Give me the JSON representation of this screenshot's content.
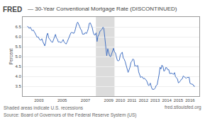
{
  "chart_data": {
    "type": "line",
    "title": "— 30-Year Conventional Mortgage Rate (DISCONTINUED)",
    "ylabel": "Percent",
    "annotations": [
      "FRED",
      "Shaded areas indicate U.S. recessions",
      "Source: Board of Governors of the Federal Reserve System (US)",
      "fred.stlouisfed.org"
    ],
    "xlim": [
      2001.6,
      2016.8
    ],
    "xticks": [
      2003,
      2005,
      2007,
      2009,
      2010,
      2011,
      2012,
      2013,
      2014,
      2015,
      2016
    ],
    "ylim": [
      3.0,
      7.0
    ],
    "yticks": [
      3.5,
      {
        "value": 4.0,
        "label": "4.0"
      },
      4.5,
      {
        "value": 5.0,
        "label": "5.0"
      },
      5.5,
      {
        "value": 6.0,
        "label": "6.0"
      },
      6.5
    ],
    "grid": "y",
    "shaded_ranges": [
      [
        2007.9,
        2009.5
      ]
    ],
    "color": "#4472C4",
    "x": [
      2002.0,
      2002.08,
      2002.17,
      2002.25,
      2002.33,
      2002.42,
      2002.5,
      2002.58,
      2002.67,
      2002.75,
      2002.83,
      2002.92,
      2003.0,
      2003.08,
      2003.17,
      2003.25,
      2003.33,
      2003.42,
      2003.5,
      2003.58,
      2003.67,
      2003.75,
      2003.83,
      2003.92,
      2004.0,
      2004.08,
      2004.17,
      2004.25,
      2004.33,
      2004.42,
      2004.5,
      2004.58,
      2004.67,
      2004.75,
      2004.83,
      2004.92,
      2005.0,
      2005.08,
      2005.17,
      2005.25,
      2005.33,
      2005.42,
      2005.5,
      2005.58,
      2005.67,
      2005.75,
      2005.83,
      2005.92,
      2006.0,
      2006.08,
      2006.17,
      2006.25,
      2006.33,
      2006.42,
      2006.5,
      2006.58,
      2006.67,
      2006.75,
      2006.83,
      2006.92,
      2007.0,
      2007.08,
      2007.17,
      2007.25,
      2007.33,
      2007.42,
      2007.5,
      2007.58,
      2007.67,
      2007.75,
      2007.83,
      2007.92,
      2008.0,
      2008.08,
      2008.17,
      2008.25,
      2008.33,
      2008.42,
      2008.5,
      2008.58,
      2008.67,
      2008.75,
      2008.83,
      2008.92,
      2009.0,
      2009.08,
      2009.17,
      2009.25,
      2009.33,
      2009.42,
      2009.5,
      2009.58,
      2009.67,
      2009.75,
      2009.83,
      2009.92,
      2010.0,
      2010.08,
      2010.17,
      2010.25,
      2010.33,
      2010.42,
      2010.5,
      2010.58,
      2010.67,
      2010.75,
      2010.83,
      2010.92,
      2011.0,
      2011.08,
      2011.17,
      2011.25,
      2011.33,
      2011.42,
      2011.5,
      2011.58,
      2011.67,
      2011.75,
      2011.83,
      2011.92,
      2012.0,
      2012.08,
      2012.17,
      2012.25,
      2012.33,
      2012.42,
      2012.5,
      2012.58,
      2012.67,
      2012.75,
      2012.83,
      2012.92,
      2013.0,
      2013.08,
      2013.17,
      2013.25,
      2013.33,
      2013.42,
      2013.5,
      2013.58,
      2013.67,
      2013.75,
      2013.83,
      2013.92,
      2014.0,
      2014.08,
      2014.17,
      2014.25,
      2014.33,
      2014.42,
      2014.5,
      2014.58,
      2014.67,
      2014.75,
      2014.83,
      2014.92,
      2015.0,
      2015.08,
      2015.17,
      2015.25,
      2015.33,
      2015.42,
      2015.5,
      2015.58,
      2015.67,
      2015.75,
      2015.83,
      2015.92,
      2016.0,
      2016.08,
      2016.17,
      2016.25,
      2016.33,
      2016.42
    ],
    "values": [
      6.54,
      6.5,
      6.42,
      6.48,
      6.38,
      6.3,
      6.35,
      6.28,
      6.18,
      6.08,
      5.98,
      6.0,
      5.92,
      5.84,
      5.83,
      5.9,
      5.76,
      5.65,
      5.54,
      5.72,
      6.08,
      6.18,
      5.95,
      5.88,
      5.8,
      5.74,
      5.72,
      5.85,
      5.95,
      6.12,
      5.94,
      5.88,
      5.73,
      5.75,
      5.72,
      5.71,
      5.77,
      5.86,
      5.73,
      5.66,
      5.63,
      5.73,
      5.83,
      5.97,
      6.1,
      6.2,
      6.22,
      6.18,
      6.17,
      6.26,
      6.52,
      6.65,
      6.74,
      6.58,
      6.52,
      6.39,
      6.32,
      6.13,
      6.14,
      6.14,
      6.22,
      6.16,
      6.27,
      6.42,
      6.68,
      6.7,
      6.58,
      6.47,
      6.22,
      6.1,
      6.09,
      6.2,
      5.76,
      6.03,
      6.12,
      6.28,
      6.32,
      6.37,
      6.48,
      6.44,
      5.94,
      5.47,
      5.04,
      5.4,
      5.2,
      5.03,
      4.99,
      5.16,
      5.3,
      5.42,
      5.22,
      5.19,
      4.97,
      4.8,
      4.78,
      4.82,
      5.09,
      5.14,
      5.22,
      4.93,
      4.87,
      4.74,
      4.58,
      4.36,
      4.2,
      4.32,
      4.46,
      4.71,
      4.77,
      4.88,
      4.84,
      4.51,
      4.55,
      4.51,
      4.55,
      4.22,
      4.02,
      3.94,
      3.98,
      3.96,
      3.87,
      3.91,
      3.83,
      3.8,
      3.68,
      3.54,
      3.55,
      3.66,
      3.47,
      3.35,
      3.34,
      3.35,
      3.41,
      3.53,
      3.57,
      3.81,
      4.07,
      4.46,
      4.37,
      4.57,
      4.5,
      4.26,
      4.29,
      4.45,
      4.43,
      4.33,
      4.34,
      4.14,
      4.14,
      4.16,
      4.13,
      4.1,
      4.19,
      3.98,
      3.93,
      3.86,
      3.67,
      3.7,
      3.77,
      3.85,
      3.87,
      4.02,
      3.98,
      3.93,
      3.9,
      3.95,
      3.94,
      3.96,
      3.65,
      3.62,
      3.61,
      3.59,
      3.5,
      3.5
    ]
  }
}
